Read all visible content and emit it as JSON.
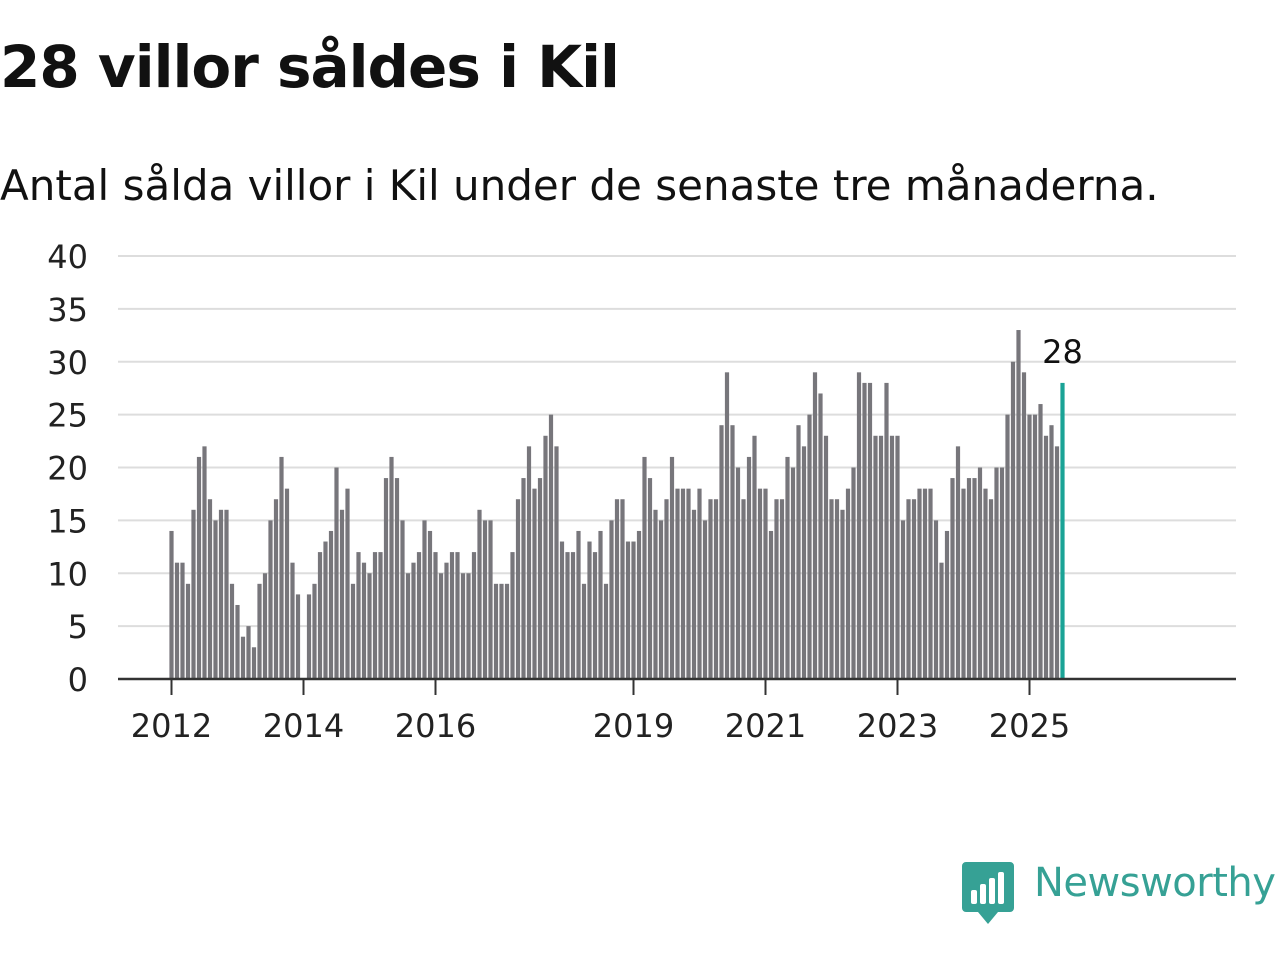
{
  "title": "28 villor såldes i Kil",
  "subtitle": "Antal sålda villor i Kil under de senaste tre månaderna.",
  "brand": {
    "name": "Newsworthy",
    "color": "#36a195",
    "icon": "newsworthy-logo-icon"
  },
  "colors": {
    "bar": "#77767b",
    "highlight": "#1aa396",
    "grid": "#dddddd",
    "axis": "#333333"
  },
  "chart_data": {
    "type": "bar",
    "title": "28 villor såldes i Kil",
    "subtitle": "Antal sålda villor i Kil under de senaste tre månaderna.",
    "xlabel": "",
    "ylabel": "",
    "ylim": [
      0,
      40
    ],
    "yticks": [
      0,
      5,
      10,
      15,
      20,
      25,
      30,
      35,
      40
    ],
    "xtick_labels": [
      "2012",
      "2014",
      "2016",
      "2019",
      "2021",
      "2023",
      "2025"
    ],
    "grid": true,
    "legend": "none",
    "start": "2012-01",
    "end": "2025-07",
    "highlight_label": "28",
    "values": [
      14,
      11,
      11,
      9,
      16,
      21,
      22,
      17,
      15,
      16,
      16,
      9,
      7,
      4,
      5,
      3,
      9,
      10,
      15,
      17,
      21,
      18,
      11,
      8,
      0,
      8,
      9,
      12,
      13,
      14,
      20,
      16,
      18,
      9,
      12,
      11,
      10,
      12,
      12,
      19,
      21,
      19,
      15,
      10,
      11,
      12,
      15,
      14,
      12,
      10,
      11,
      12,
      12,
      10,
      10,
      12,
      16,
      15,
      15,
      9,
      9,
      9,
      12,
      17,
      19,
      22,
      18,
      19,
      23,
      25,
      22,
      13,
      12,
      12,
      14,
      9,
      13,
      12,
      14,
      9,
      15,
      17,
      17,
      13,
      13,
      14,
      21,
      19,
      16,
      15,
      17,
      21,
      18,
      18,
      18,
      16,
      18,
      15,
      17,
      17,
      24,
      29,
      24,
      20,
      17,
      21,
      23,
      18,
      18,
      14,
      17,
      17,
      21,
      20,
      24,
      22,
      25,
      29,
      27,
      23,
      17,
      17,
      16,
      18,
      20,
      29,
      28,
      28,
      23,
      23,
      28,
      23,
      23,
      15,
      17,
      17,
      18,
      18,
      18,
      15,
      11,
      14,
      19,
      22,
      18,
      19,
      19,
      20,
      18,
      17,
      20,
      20,
      25,
      30,
      33,
      29,
      25,
      25,
      26,
      23,
      24,
      22,
      28
    ]
  }
}
